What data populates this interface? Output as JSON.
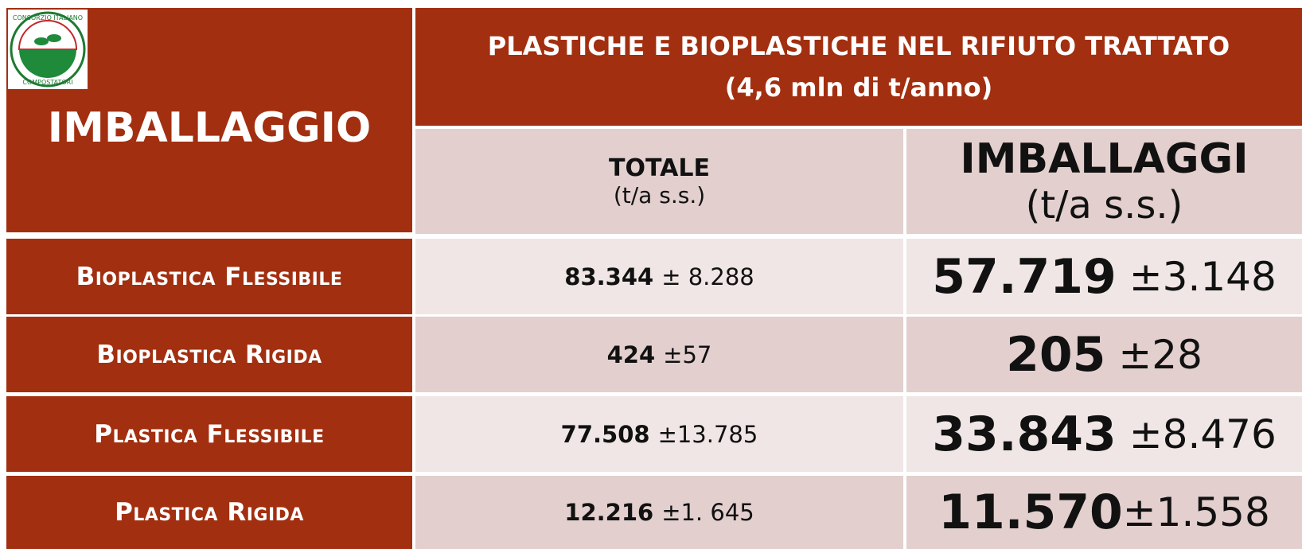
{
  "logo": {
    "top": "CONSORZIO ITALIANO",
    "bottom": "COMPOSTATORI"
  },
  "header": {
    "left": "IMBALLAGGIO",
    "title": [
      "PLASTICHE E BIOPLASTICHE NEL RIFIUTO TRATTATO",
      "(4,6 mln di t/anno)"
    ],
    "columns": [
      {
        "name": "TOTALE",
        "unit": "(t/a s.s.)"
      },
      {
        "name": "IMBALLAGGI",
        "unit": "(t/a s.s.)"
      }
    ]
  },
  "table": {
    "rows": [
      {
        "label": "Bioplastica Flessibile",
        "totale": "83.344",
        "totale_err": "± 8.288",
        "imballaggi": "57.719",
        "imballaggi_err": "±3.148"
      },
      {
        "label": "Bioplastica Rigida",
        "totale": "424",
        "totale_err": "±57",
        "imballaggi": "205",
        "imballaggi_err": "±28"
      },
      {
        "label": "Plastica Flessibile",
        "totale": "77.508",
        "totale_err": "±13.785",
        "imballaggi": "33.843",
        "imballaggi_err": "±8.476"
      },
      {
        "label": "Plastica Rigida",
        "totale": "12.216",
        "totale_err": "±1. 645",
        "imballaggi": "11.570",
        "imballaggi_err": "±1.558"
      }
    ]
  }
}
